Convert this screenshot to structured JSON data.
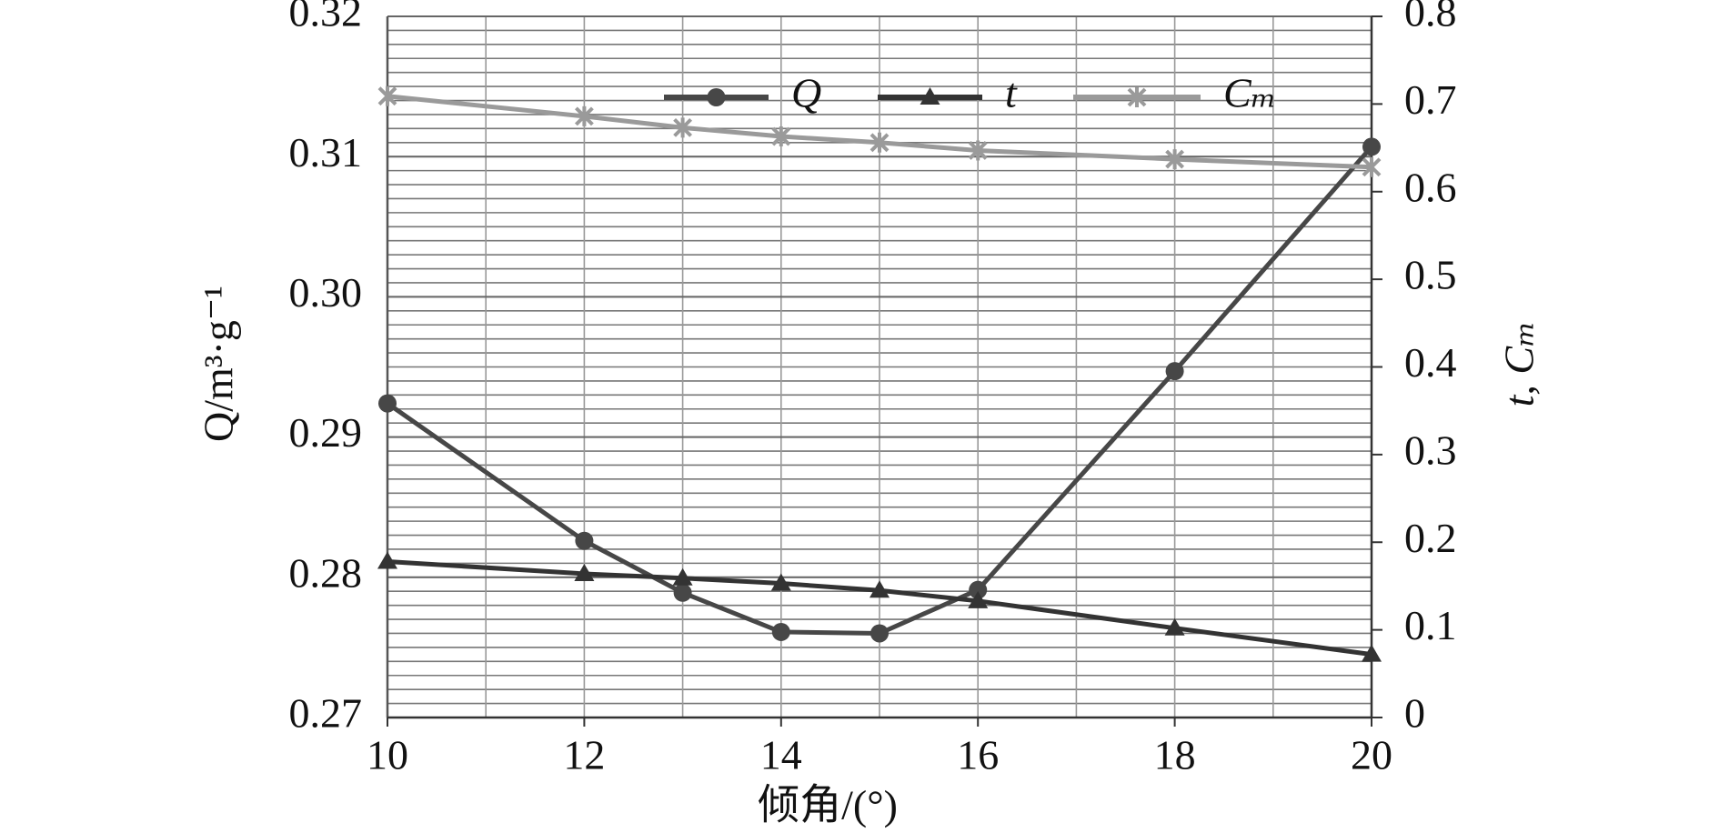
{
  "chart_data": {
    "type": "line",
    "x_label": "倾角/(°)",
    "y_label": "Q/m³·g⁻¹",
    "y2_label": "t, Cₘ",
    "x": [
      10,
      12,
      13,
      14,
      15,
      16,
      18,
      20
    ],
    "series": [
      {
        "name": "Q",
        "color": "#474747",
        "marker": "circle",
        "values": [
          0.2924,
          0.2826,
          0.2789,
          0.2761,
          0.276,
          0.2791,
          0.2947,
          0.3107
        ]
      },
      {
        "name": "t",
        "color": "#333333",
        "marker": "triangle",
        "axis": "y2",
        "values": [
          0.178,
          0.164,
          0.159,
          0.153,
          0.145,
          0.133,
          0.102,
          0.072
        ]
      },
      {
        "name": "Cₘ",
        "color": "#9a9a9a",
        "marker": "asterisk",
        "axis": "y2",
        "values": [
          0.709,
          0.686,
          0.673,
          0.663,
          0.656,
          0.647,
          0.637,
          0.628
        ]
      }
    ],
    "xlim": [
      10,
      20
    ],
    "xticks": [
      10,
      12,
      14,
      16,
      18,
      20
    ],
    "ylim": [
      0.27,
      0.32
    ],
    "yticks": [
      0.27,
      0.28,
      0.29,
      {
        "value": 0.3,
        "label": "0.30"
      },
      0.31,
      0.32
    ],
    "y2lim": [
      0,
      0.8
    ],
    "y2ticks": [
      0,
      0.1,
      0.2,
      0.3,
      0.4,
      0.5,
      0.6,
      0.7,
      0.8
    ],
    "grid": true,
    "x_minor_divisions": 2,
    "y_minor_divisions": 10,
    "legend": "top"
  }
}
